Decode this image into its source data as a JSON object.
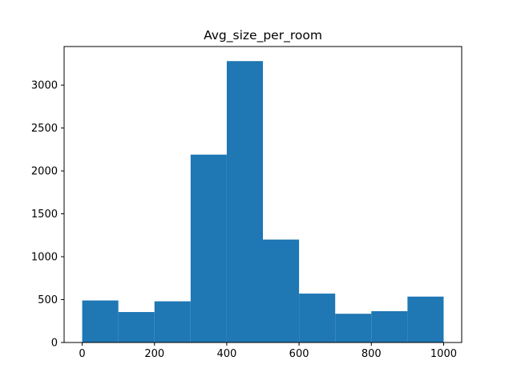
{
  "chart_data": {
    "type": "bar",
    "title": "Avg_size_per_room",
    "xlabel": "",
    "ylabel": "",
    "bin_edges": [
      0,
      100,
      200,
      300,
      400,
      500,
      600,
      700,
      800,
      900,
      1000
    ],
    "values": [
      490,
      355,
      480,
      2190,
      3280,
      1200,
      570,
      335,
      365,
      535
    ],
    "xlim": [
      -50,
      1050
    ],
    "ylim": [
      0,
      3450
    ],
    "xticks": [
      0,
      200,
      400,
      600,
      800,
      1000
    ],
    "yticks": [
      0,
      500,
      1000,
      1500,
      2000,
      2500,
      3000
    ],
    "bar_color": "#1f77b4",
    "grid": false,
    "legend": "none"
  }
}
